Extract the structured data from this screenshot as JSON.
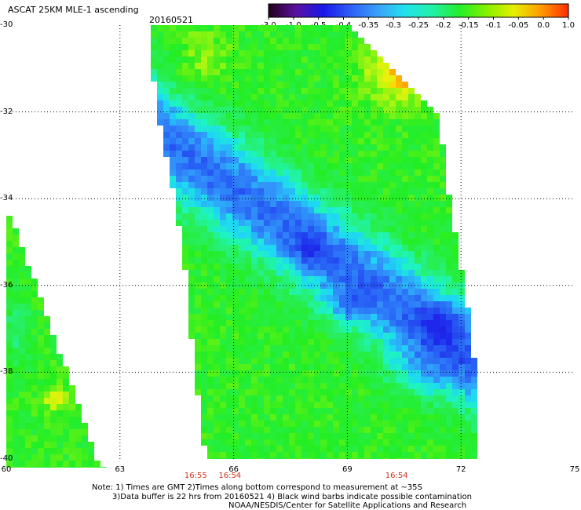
{
  "title": "ASCAT 25KM MLE-1 ascending",
  "date": "20160521",
  "colorbar": {
    "ticks": [
      "-3.0",
      "-1.0",
      "-0.5",
      "-0.4",
      "-0.35",
      "-0.3",
      "-0.25",
      "-0.2",
      "-0.15",
      "-0.1",
      "-0.05",
      "0.0",
      "1.0"
    ],
    "colors": [
      "#220018",
      "#5a10a0",
      "#1a18e8",
      "#2e5ef5",
      "#3aa0f8",
      "#22e2ee",
      "#20f0a8",
      "#22ee2a",
      "#86f000",
      "#e6f000",
      "#ff9a00",
      "#ff2c00"
    ]
  },
  "notes": {
    "line1": "Note: 1) Times are GMT 2)Times along bottom correspond to measurement at ~35S",
    "line2": "3)Data buffer is 22 hrs from 20160521 4) Black wind barbs indicate possible contamination",
    "line3": "NOAA/NESDIS/Center for Satellite Applications and Research"
  },
  "chart_data": {
    "type": "heatmap",
    "title": "ASCAT 25KM MLE-1 ascending",
    "date": "20160521",
    "x_ticks": [
      "60",
      "63",
      "66",
      "69",
      "72",
      "75"
    ],
    "y_ticks": [
      "-30",
      "-32",
      "-34",
      "-36",
      "-38",
      "-40"
    ],
    "xlim": [
      60,
      75
    ],
    "ylim": [
      -40,
      -30
    ],
    "grid": true,
    "time_labels": [
      {
        "x": 65.0,
        "label": "16:55"
      },
      {
        "x": 65.9,
        "label": "16:54"
      },
      {
        "x": 70.3,
        "label": "16:54"
      }
    ],
    "swaths": [
      {
        "name": "east",
        "edge_lat": [
          -30.0,
          -32.0,
          -34.0,
          -36.0,
          -38.0,
          -40.0
        ],
        "edge_west": [
          63.8,
          64.0,
          64.5,
          64.8,
          65.0,
          65.3
        ],
        "edge_east": [
          69.0,
          71.4,
          71.7,
          72.1,
          72.4,
          72.5
        ]
      },
      {
        "name": "west",
        "edge_lat": [
          -34.4,
          -36.0,
          -38.0,
          -40.0,
          -40.2
        ],
        "edge_west": [
          60.0,
          60.0,
          60.0,
          60.0,
          60.0
        ],
        "edge_east": [
          60.1,
          60.8,
          61.6,
          62.4,
          62.7
        ]
      }
    ],
    "regions": [
      {
        "desc": "mostly green background",
        "value": -0.17
      },
      {
        "lat": [
          -30.1,
          -32.0
        ],
        "lon": [
          69.1,
          71.2
        ],
        "value": -0.05
      },
      {
        "lat": [
          -30.8,
          -31.4
        ],
        "lon": [
          70.2,
          71.1
        ],
        "value": 0.0
      },
      {
        "lat": [
          -32.2,
          -37.0
        ],
        "lon": [
          64.1,
          71.5
        ],
        "value": -0.38
      },
      {
        "lat": [
          -35.5,
          -37.2
        ],
        "lon": [
          69.0,
          71.8
        ],
        "value": -0.45
      },
      {
        "lat": [
          -38.1,
          -38.8
        ],
        "lon": [
          61.0,
          61.8
        ],
        "value": -0.1
      },
      {
        "lat": [
          -38.2,
          -38.3
        ],
        "lon": [
          61.5,
          61.7
        ],
        "value": 0.0
      }
    ]
  }
}
